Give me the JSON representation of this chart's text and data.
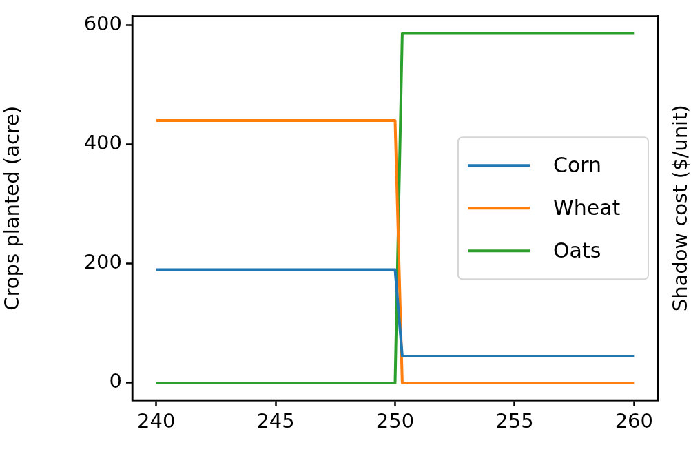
{
  "chart_data": {
    "type": "line",
    "xlabel": null,
    "ylabel": "Crops planted (acre)",
    "y2label": "Shadow cost ($/unit)",
    "x": [
      240,
      250,
      250.3,
      260
    ],
    "series": [
      {
        "name": "Corn",
        "color": "#1f77b4",
        "values": [
          190,
          190,
          45,
          45
        ]
      },
      {
        "name": "Wheat",
        "color": "#ff7f0e",
        "values": [
          440,
          440,
          0,
          0
        ]
      },
      {
        "name": "Oats",
        "color": "#2ca02c",
        "values": [
          0,
          0,
          586,
          586
        ]
      }
    ],
    "xlim": [
      239,
      261
    ],
    "xticks": [
      240,
      245,
      250,
      255,
      260
    ],
    "ylim": [
      -29,
      615
    ],
    "yticks": [
      0,
      200,
      400,
      600
    ],
    "grid": false,
    "legend": "center right",
    "marker": "none",
    "line_style": "solid"
  }
}
